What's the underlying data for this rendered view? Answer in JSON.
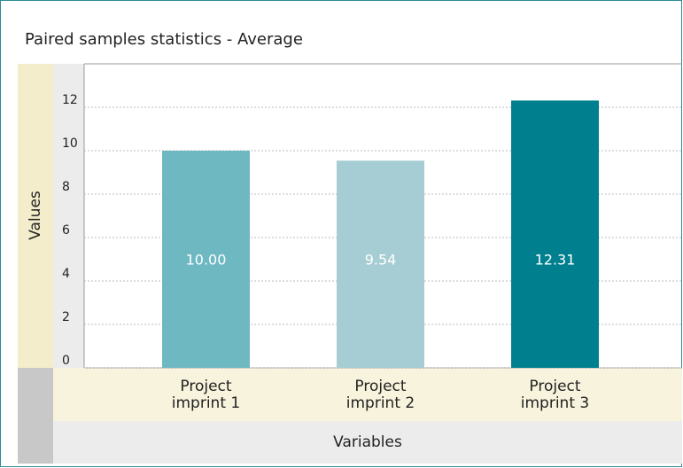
{
  "chart_data": {
    "type": "bar",
    "title": "Paired samples statistics - Average",
    "xlabel": "Variables",
    "ylabel": "Values",
    "categories": [
      "Project imprint 1",
      "Project imprint 2",
      "Project imprint 3"
    ],
    "values": [
      10.0,
      9.54,
      12.31
    ],
    "value_labels": [
      "10.00",
      "9.54",
      "12.31"
    ],
    "colors": [
      "#6eb8c2",
      "#a5cdd3",
      "#00808f"
    ],
    "ylim": [
      0,
      14
    ],
    "yticks": [
      0,
      2,
      4,
      6,
      8,
      10,
      12
    ],
    "grid": true
  }
}
